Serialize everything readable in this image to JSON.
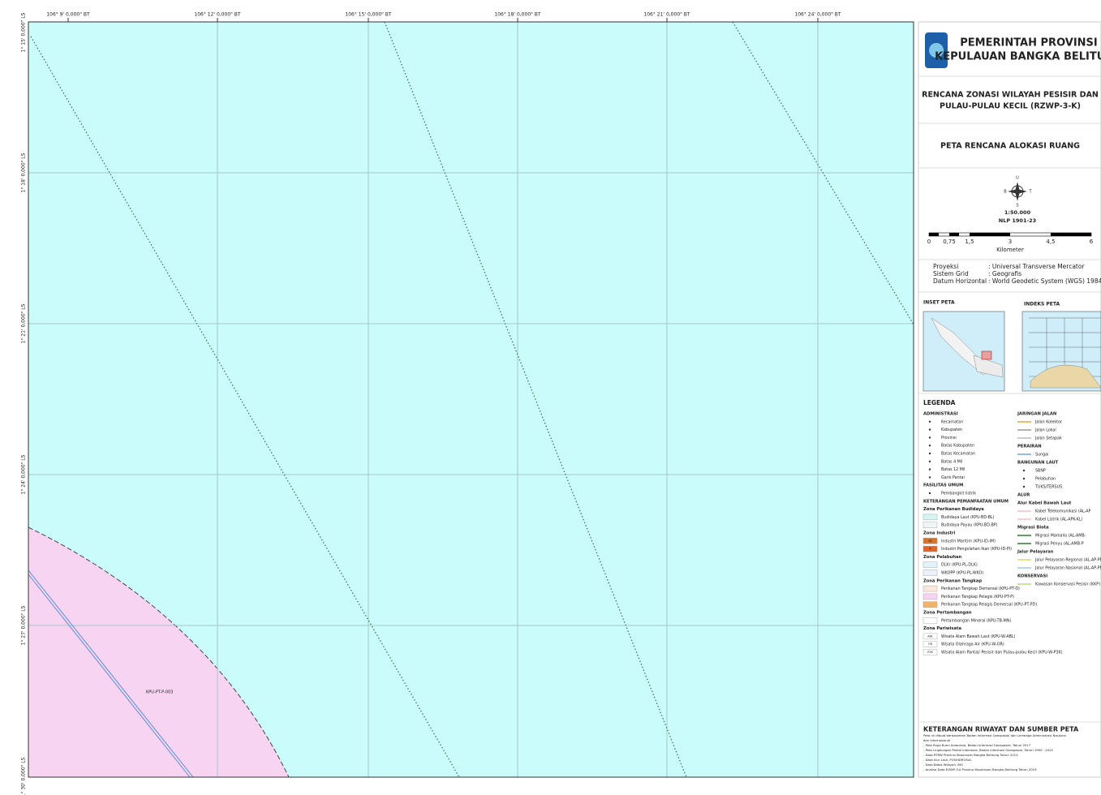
{
  "map": {
    "top_labels": [
      "106° 9' 0,000\" BT",
      "106° 12' 0,000\" BT",
      "106° 15' 0,000\" BT",
      "106° 18' 0,000\" BT",
      "106° 21' 0,000\" BT",
      "106° 24' 0,000\" BT"
    ],
    "left_labels": [
      "1° 15' 0,000\" LS",
      "1° 18' 0,000\" LS",
      "1° 21' 0,000\" LS",
      "1° 24' 0,000\" LS",
      "1° 27' 0,000\" LS",
      "1° 30' 0,000\" LS"
    ],
    "zone_label": "KPU-PT-P-003",
    "sea_color": "#cbfcfc",
    "zone_color": "#f6d4f2"
  },
  "panel": {
    "header": {
      "line1": "PEMERINTAH PROVINSI",
      "line2": "KEPULAUAN BANGKA BELITUNG"
    },
    "plan": {
      "line1": "RENCANA ZONASI WILAYAH PESISIR DAN",
      "line2": "PULAU-PULAU KECIL (RZWP-3-K)"
    },
    "map_title": "PETA RENCANA ALOKASI RUANG",
    "compass": {
      "north": "U",
      "south": "S",
      "west": "B",
      "east": "T"
    },
    "scale": "1:50.000",
    "sheet": "NLP 1901-23",
    "scalebar": {
      "labels": [
        "0",
        "0,75",
        "1,5",
        "3",
        "4,5",
        "6"
      ],
      "unit": "Kilometer"
    },
    "projection": [
      {
        "key": "Proyeksi",
        "value": ": Universal Transverse Mercator"
      },
      {
        "key": "Sistem Grid",
        "value": ": Geografis"
      },
      {
        "key": "Datum Horizontal",
        "value": ": World Geodetic System (WGS) 1984"
      }
    ],
    "inset_title": "INSET PETA",
    "index_title": "INDEKS PETA",
    "legend_title": "LEGENDA",
    "legend_left": [
      {
        "title": "ADMINISTRASI",
        "items": [
          {
            "label": "Kecamatan"
          },
          {
            "label": "Kabupaten"
          },
          {
            "label": "Provinsi"
          },
          {
            "label": "Batas Kabupaten"
          },
          {
            "label": "Batas Kecamatan"
          },
          {
            "label": "Batas 4 Mil"
          },
          {
            "label": "Batas 12 Mil"
          },
          {
            "label": "Garis Pantai"
          }
        ]
      },
      {
        "title": "FASILITAS UMUM",
        "items": [
          {
            "label": "Pembangkit listrik"
          }
        ]
      },
      {
        "title": "KETERANGAN PEMANFAATAN UMUM",
        "items": []
      },
      {
        "title": "Zona Perikanan Budidaya",
        "items": [
          {
            "label": "Budidaya Laut (KPU-BD-BL)",
            "color": "#d6f4f4"
          },
          {
            "label": "Budidaya Payau (KPU-BD-BP)",
            "color": "#eef6f6"
          }
        ]
      },
      {
        "title": "Zona Industri",
        "items": [
          {
            "label": "Industri Maritim (KPU-ID-IM)",
            "color": "#d9742a",
            "code": "IM"
          },
          {
            "label": "Industri Pengolahan Ikan (KPU-ID-PI)",
            "color": "#e0662a",
            "code": "PI"
          }
        ]
      },
      {
        "title": "Zona Pelabuhan",
        "items": [
          {
            "label": "DLKr (KPU-PL-DLK)",
            "color": "#e3f3fb"
          },
          {
            "label": "WKOPP (KPU-PL-WKO)",
            "color": "#eaf1fb"
          }
        ]
      },
      {
        "title": "Zona Perikanan Tangkap",
        "items": [
          {
            "label": "Perikanan Tangkap Demersal (KPU-PT-D)",
            "color": "#fbe8dc"
          },
          {
            "label": "Perikanan Tangkap Pelagis (KPU-PT-P)",
            "color": "#f6d4f2"
          },
          {
            "label": "Perikanan Tangkap Pelagis Demersal (KPU-PT-PD)",
            "color": "#f2b46a"
          }
        ]
      },
      {
        "title": "Zona Pertambangan",
        "items": [
          {
            "label": "Pertambangan Mineral (KPU-TB-MN)",
            "color": "#ffffff"
          }
        ]
      },
      {
        "title": "Zona Pariwisata",
        "items": [
          {
            "label": "Wisata Alam Bawah Laut (KPU-W-ABL)",
            "color": "#ffffff",
            "code": "ABL"
          },
          {
            "label": "Wisata Olahraga Air (KPU-W-OR)",
            "color": "#ffffff",
            "code": "OR"
          },
          {
            "label": "Wisata Alam Pantai/ Pesisir dan Pulau-pulau Kecil (KPU-W-P3K)",
            "color": "#ffffff",
            "code": "P3K"
          }
        ]
      }
    ],
    "legend_right": [
      {
        "title": "JARINGAN JALAN",
        "items": [
          {
            "label": "Jalan Kolektor",
            "color": "#e8a33a"
          },
          {
            "label": "Jalan Lokal",
            "color": "#999999"
          },
          {
            "label": "Jalan Setapak",
            "color": "#bbbbbb"
          }
        ]
      },
      {
        "title": "PERAIRAN",
        "items": [
          {
            "label": "Sungai",
            "color": "#6fa8dc"
          }
        ]
      },
      {
        "title": "BANGUNAN LAUT",
        "items": [
          {
            "label": "SBNP"
          },
          {
            "label": "Pelabuhan"
          },
          {
            "label": "TUKS/TERSUS"
          }
        ]
      },
      {
        "title": "ALUR",
        "items": []
      },
      {
        "title": "Alur Kabel Bawah Laut",
        "items": [
          {
            "label": "Kabel Telekomunikasi (AL-AP",
            "color": "#f3c0c0"
          },
          {
            "label": "Kabel Listrik (AL-APK-KL)",
            "color": "#f3c0c0"
          }
        ]
      },
      {
        "title": "Migrasi Biota",
        "items": [
          {
            "label": "Migrasi Mamalia (AL-AMB-",
            "color": "#2e7d32"
          },
          {
            "label": "Migrasi Penyu (AL-AMB-P",
            "color": "#2e7d32"
          }
        ]
      },
      {
        "title": "Jalur Pelayaran",
        "items": [
          {
            "label": "Jalur Pelayaran Regional (AL-AP-PR)",
            "color": "#e8d36a"
          },
          {
            "label": "Jalur Pelayaran Nasional (AL-AP-PN)",
            "color": "#9fc5e8"
          }
        ]
      },
      {
        "title": "KONSERVASI",
        "items": [
          {
            "label": "Kawasan Konservasi Pesisir (KKP)",
            "color": "#b6e07a"
          }
        ]
      }
    ],
    "sources": {
      "title": "KETERANGAN RIWAYAT DAN SUMBER PETA",
      "lines": [
        "Peta ini dibuat berdasarkan Badan Informasi Geospasial dan Lembaga Administrasi Nasional",
        "dan Internasional",
        "- Peta Rupa Bumi Indonesia, Badan Informasi Geospasial, Tahun 2017",
        "- Peta Lingkungan Pantai Indonesia, Badan Informasi Geospasial, Tahun 1990 - 2015",
        "- Data RTRW Provinsi Kepulauan Bangka Belitung Tahun 2014",
        "- Data Alur Laut, PUSHIDROSAL",
        "- Data Batas Wilayah, BIG",
        "- Analisa Data RZWP-3-K Provinsi Kepulauan Bangka Belitung Tahun 2019"
      ]
    }
  }
}
